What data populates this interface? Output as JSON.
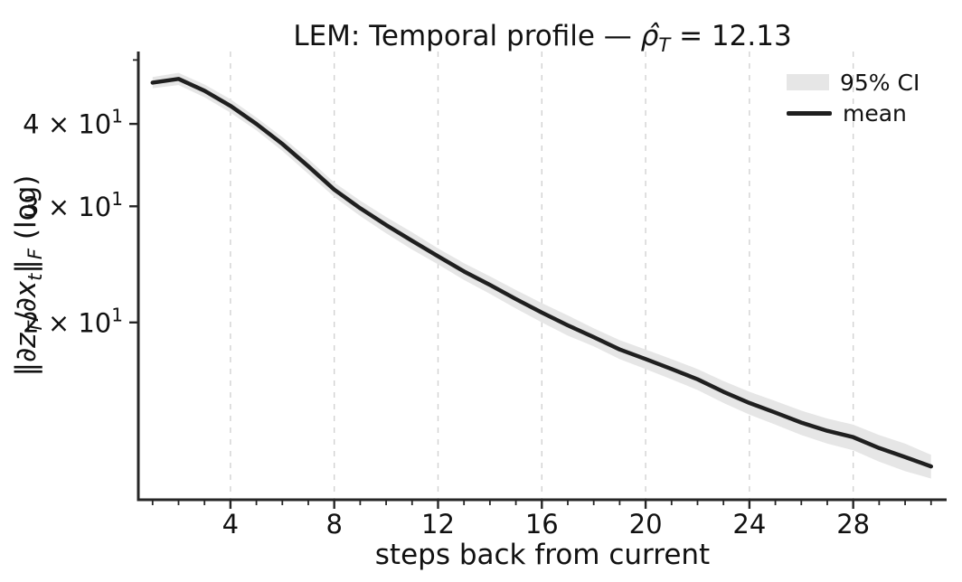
{
  "ui": {
    "title_prefix": "LEM: Temporal profile — ",
    "title_rho": "ρ̂",
    "title_rho_sub": "T",
    "title_eq": " = 12.13",
    "xlabel": "steps back from current",
    "ylabel": {
      "open_bar": "‖∂",
      "z": "z",
      "z_sub": "T",
      "mid": "/∂",
      "x": "x",
      "x_sub": "t",
      "close_bar": "‖",
      "f_sub": "F",
      "tail": " (log)"
    },
    "legend": {
      "ci": "95% CI",
      "mean": "mean"
    }
  },
  "colors": {
    "background": "#ffffff",
    "mean": "#1f1f1f",
    "band": "#e6e6e6",
    "grid": "#d2d2d2",
    "spine": "#262626",
    "text": "#111111"
  },
  "chart_data": {
    "type": "line",
    "title": "LEM: Temporal profile — ρ̂_T = 12.13",
    "xlabel": "steps back from current",
    "ylabel": "‖∂z_T/∂x_t‖_F (log)",
    "yscale": "log",
    "grid": "vertical dashed gridlines at x major ticks only",
    "legend_position": "upper right, frameless",
    "xlim": [
      0.45,
      31.6
    ],
    "ylim": [
      10.77,
      51.5
    ],
    "x_major_ticks": [
      4,
      8,
      12,
      16,
      20,
      24,
      28
    ],
    "x_minor_tick_step": 1,
    "y_major_ticks": [
      {
        "value": 20,
        "label": "2 × 10",
        "exp": "1"
      },
      {
        "value": 30,
        "label": "3 × 10",
        "exp": "1"
      },
      {
        "value": 40,
        "label": "4 × 10",
        "exp": "1"
      }
    ],
    "y_minor_ticks": [
      50
    ],
    "x": [
      1,
      2,
      3,
      4,
      5,
      6,
      7,
      8,
      9,
      10,
      11,
      12,
      13,
      14,
      15,
      16,
      17,
      18,
      19,
      20,
      21,
      22,
      23,
      24,
      25,
      26,
      27,
      28,
      29,
      30,
      31
    ],
    "series": [
      {
        "name": "mean",
        "values": [
          46.2,
          46.8,
          44.9,
          42.6,
          40.0,
          37.3,
          34.5,
          31.8,
          29.8,
          28.1,
          26.6,
          25.2,
          23.9,
          22.8,
          21.7,
          20.7,
          19.8,
          19.0,
          18.2,
          17.6,
          17.0,
          16.4,
          15.7,
          15.1,
          14.6,
          14.1,
          13.7,
          13.4,
          12.9,
          12.5,
          12.1
        ]
      },
      {
        "name": "95% CI lower",
        "values": [
          45.3,
          45.8,
          43.9,
          41.6,
          39.1,
          36.4,
          33.6,
          31.0,
          29.0,
          27.3,
          25.8,
          24.5,
          23.2,
          22.1,
          21.0,
          20.0,
          19.1,
          18.4,
          17.6,
          17.0,
          16.4,
          15.8,
          15.1,
          14.5,
          14.0,
          13.5,
          13.1,
          12.8,
          12.3,
          11.9,
          11.6
        ]
      },
      {
        "name": "95% CI upper",
        "values": [
          47.1,
          47.8,
          45.9,
          43.6,
          40.9,
          38.2,
          35.4,
          32.6,
          30.6,
          28.9,
          27.4,
          25.9,
          24.6,
          23.5,
          22.4,
          21.4,
          20.5,
          19.6,
          18.8,
          18.2,
          17.6,
          17.0,
          16.3,
          15.7,
          15.2,
          14.7,
          14.3,
          14.0,
          13.5,
          13.1,
          12.6
        ]
      }
    ]
  }
}
